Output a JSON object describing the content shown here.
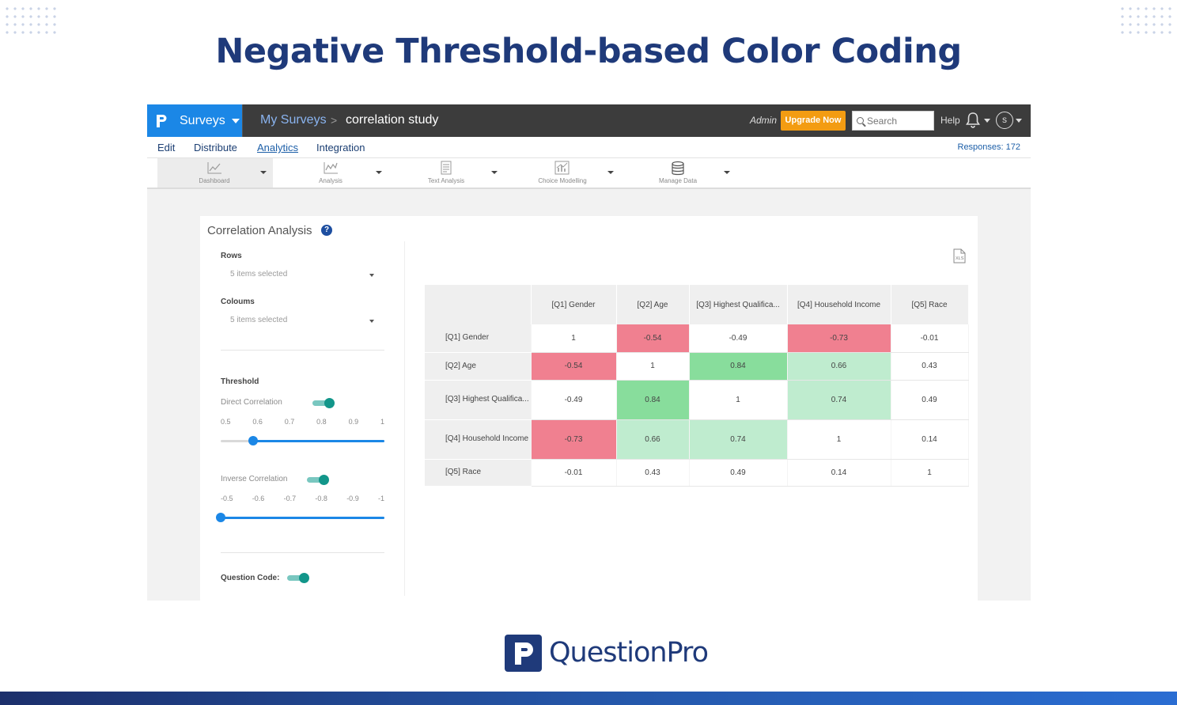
{
  "headline": "Negative Threshold-based Color Coding",
  "app": {
    "brand_label": "Surveys",
    "breadcrumb": {
      "root": "My Surveys",
      "separator": ">",
      "current": "correlation study"
    },
    "admin_label": "Admin",
    "upgrade_label": "Upgrade Now",
    "search_placeholder": "Search",
    "help_label": "Help",
    "avatar_letter": "s",
    "menu": [
      "Edit",
      "Distribute",
      "Analytics",
      "Integration"
    ],
    "active_menu": "Analytics",
    "responses": "Responses: 172",
    "tools": [
      {
        "label": "Dashboard",
        "icon": "line-chart-icon"
      },
      {
        "label": "Analysis",
        "icon": "analysis-chart-icon"
      },
      {
        "label": "Text Analysis",
        "icon": "document-icon"
      },
      {
        "label": "Choice Modelling",
        "icon": "bar-chart-icon"
      },
      {
        "label": "Manage Data",
        "icon": "database-icon"
      }
    ],
    "selected_tool": "Dashboard"
  },
  "panel": {
    "title": "Correlation Analysis",
    "help_icon": "question-circle-icon",
    "rows_label": "Rows",
    "rows_value": "5 items selected",
    "columns_label": "Coloums",
    "columns_value": "5 items selected",
    "threshold_label": "Threshold",
    "direct_label": "Direct Correlation",
    "direct_ticks": [
      "0.5",
      "0.6",
      "0.7",
      "0.8",
      "0.9",
      "1"
    ],
    "direct_value": 0.6,
    "inverse_label": "Inverse Correlation",
    "inverse_ticks": [
      "-0.5",
      "-0.6",
      "-0.7",
      "-0.8",
      "-0.9",
      "-1"
    ],
    "inverse_value": -0.5,
    "question_code_label": "Question Code:",
    "export_icon": "xls-file-icon"
  },
  "matrix": {
    "columns": [
      "[Q1] Gender",
      "[Q2] Age",
      "[Q3] Highest Qualifica...",
      "[Q4] Household Income",
      "[Q5] Race"
    ],
    "rows": [
      {
        "label": "[Q1] Gender",
        "values": [
          "1",
          "-0.54",
          "-0.49",
          "-0.73",
          "-0.01"
        ]
      },
      {
        "label": "[Q2] Age",
        "values": [
          "-0.54",
          "1",
          "0.84",
          "0.66",
          "0.43"
        ]
      },
      {
        "label": "[Q3] Highest Qualifica...",
        "values": [
          "-0.49",
          "0.84",
          "1",
          "0.74",
          "0.49"
        ]
      },
      {
        "label": "[Q4] Household Income",
        "values": [
          "-0.73",
          "0.66",
          "0.74",
          "1",
          "0.14"
        ]
      },
      {
        "label": "[Q5] Race",
        "values": [
          "-0.01",
          "0.43",
          "0.49",
          "0.14",
          "1"
        ]
      }
    ],
    "colors": {
      "negative": "#f08090",
      "strong_positive": "#88dd9c",
      "positive": "#bfeccf"
    }
  },
  "footer_logo": "QuestionPro"
}
